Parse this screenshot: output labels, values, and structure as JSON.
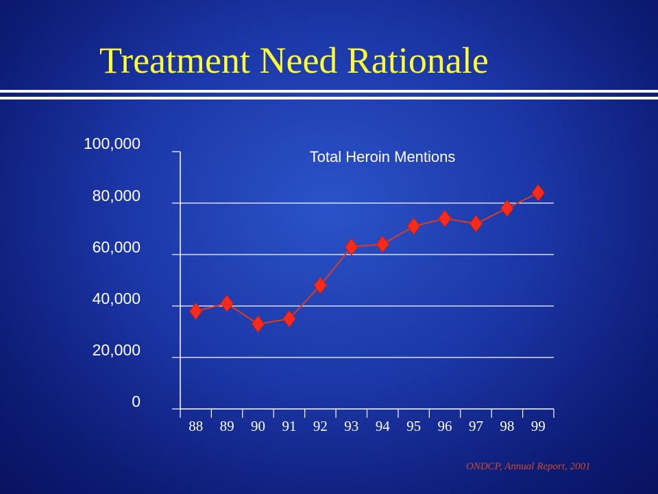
{
  "slide": {
    "title": "Treatment Need Rationale",
    "source": "ONDCP, Annual Report, 2001"
  },
  "colors": {
    "title": "#ffff33",
    "series": "#ff2a1a",
    "line": "#e03b1e",
    "axis": "#ffffff",
    "source": "#d24b2c"
  },
  "chart_data": {
    "type": "line",
    "title": "Total Heroin Mentions",
    "xlabel": "",
    "ylabel": "",
    "categories": [
      "88",
      "89",
      "90",
      "91",
      "92",
      "93",
      "94",
      "95",
      "96",
      "97",
      "98",
      "99"
    ],
    "ytick_labels": [
      "0",
      "20,000",
      "40,000",
      "60,000",
      "80,000",
      "100,000"
    ],
    "yticks": [
      0,
      20000,
      40000,
      60000,
      80000,
      100000
    ],
    "ylim": [
      0,
      100000
    ],
    "grid": true,
    "legend": "none",
    "marker": "diamond",
    "series": [
      {
        "values": [
          38000,
          41000,
          33000,
          35000,
          48000,
          63000,
          64000,
          71000,
          74000,
          72000,
          78000,
          84000
        ]
      }
    ]
  }
}
